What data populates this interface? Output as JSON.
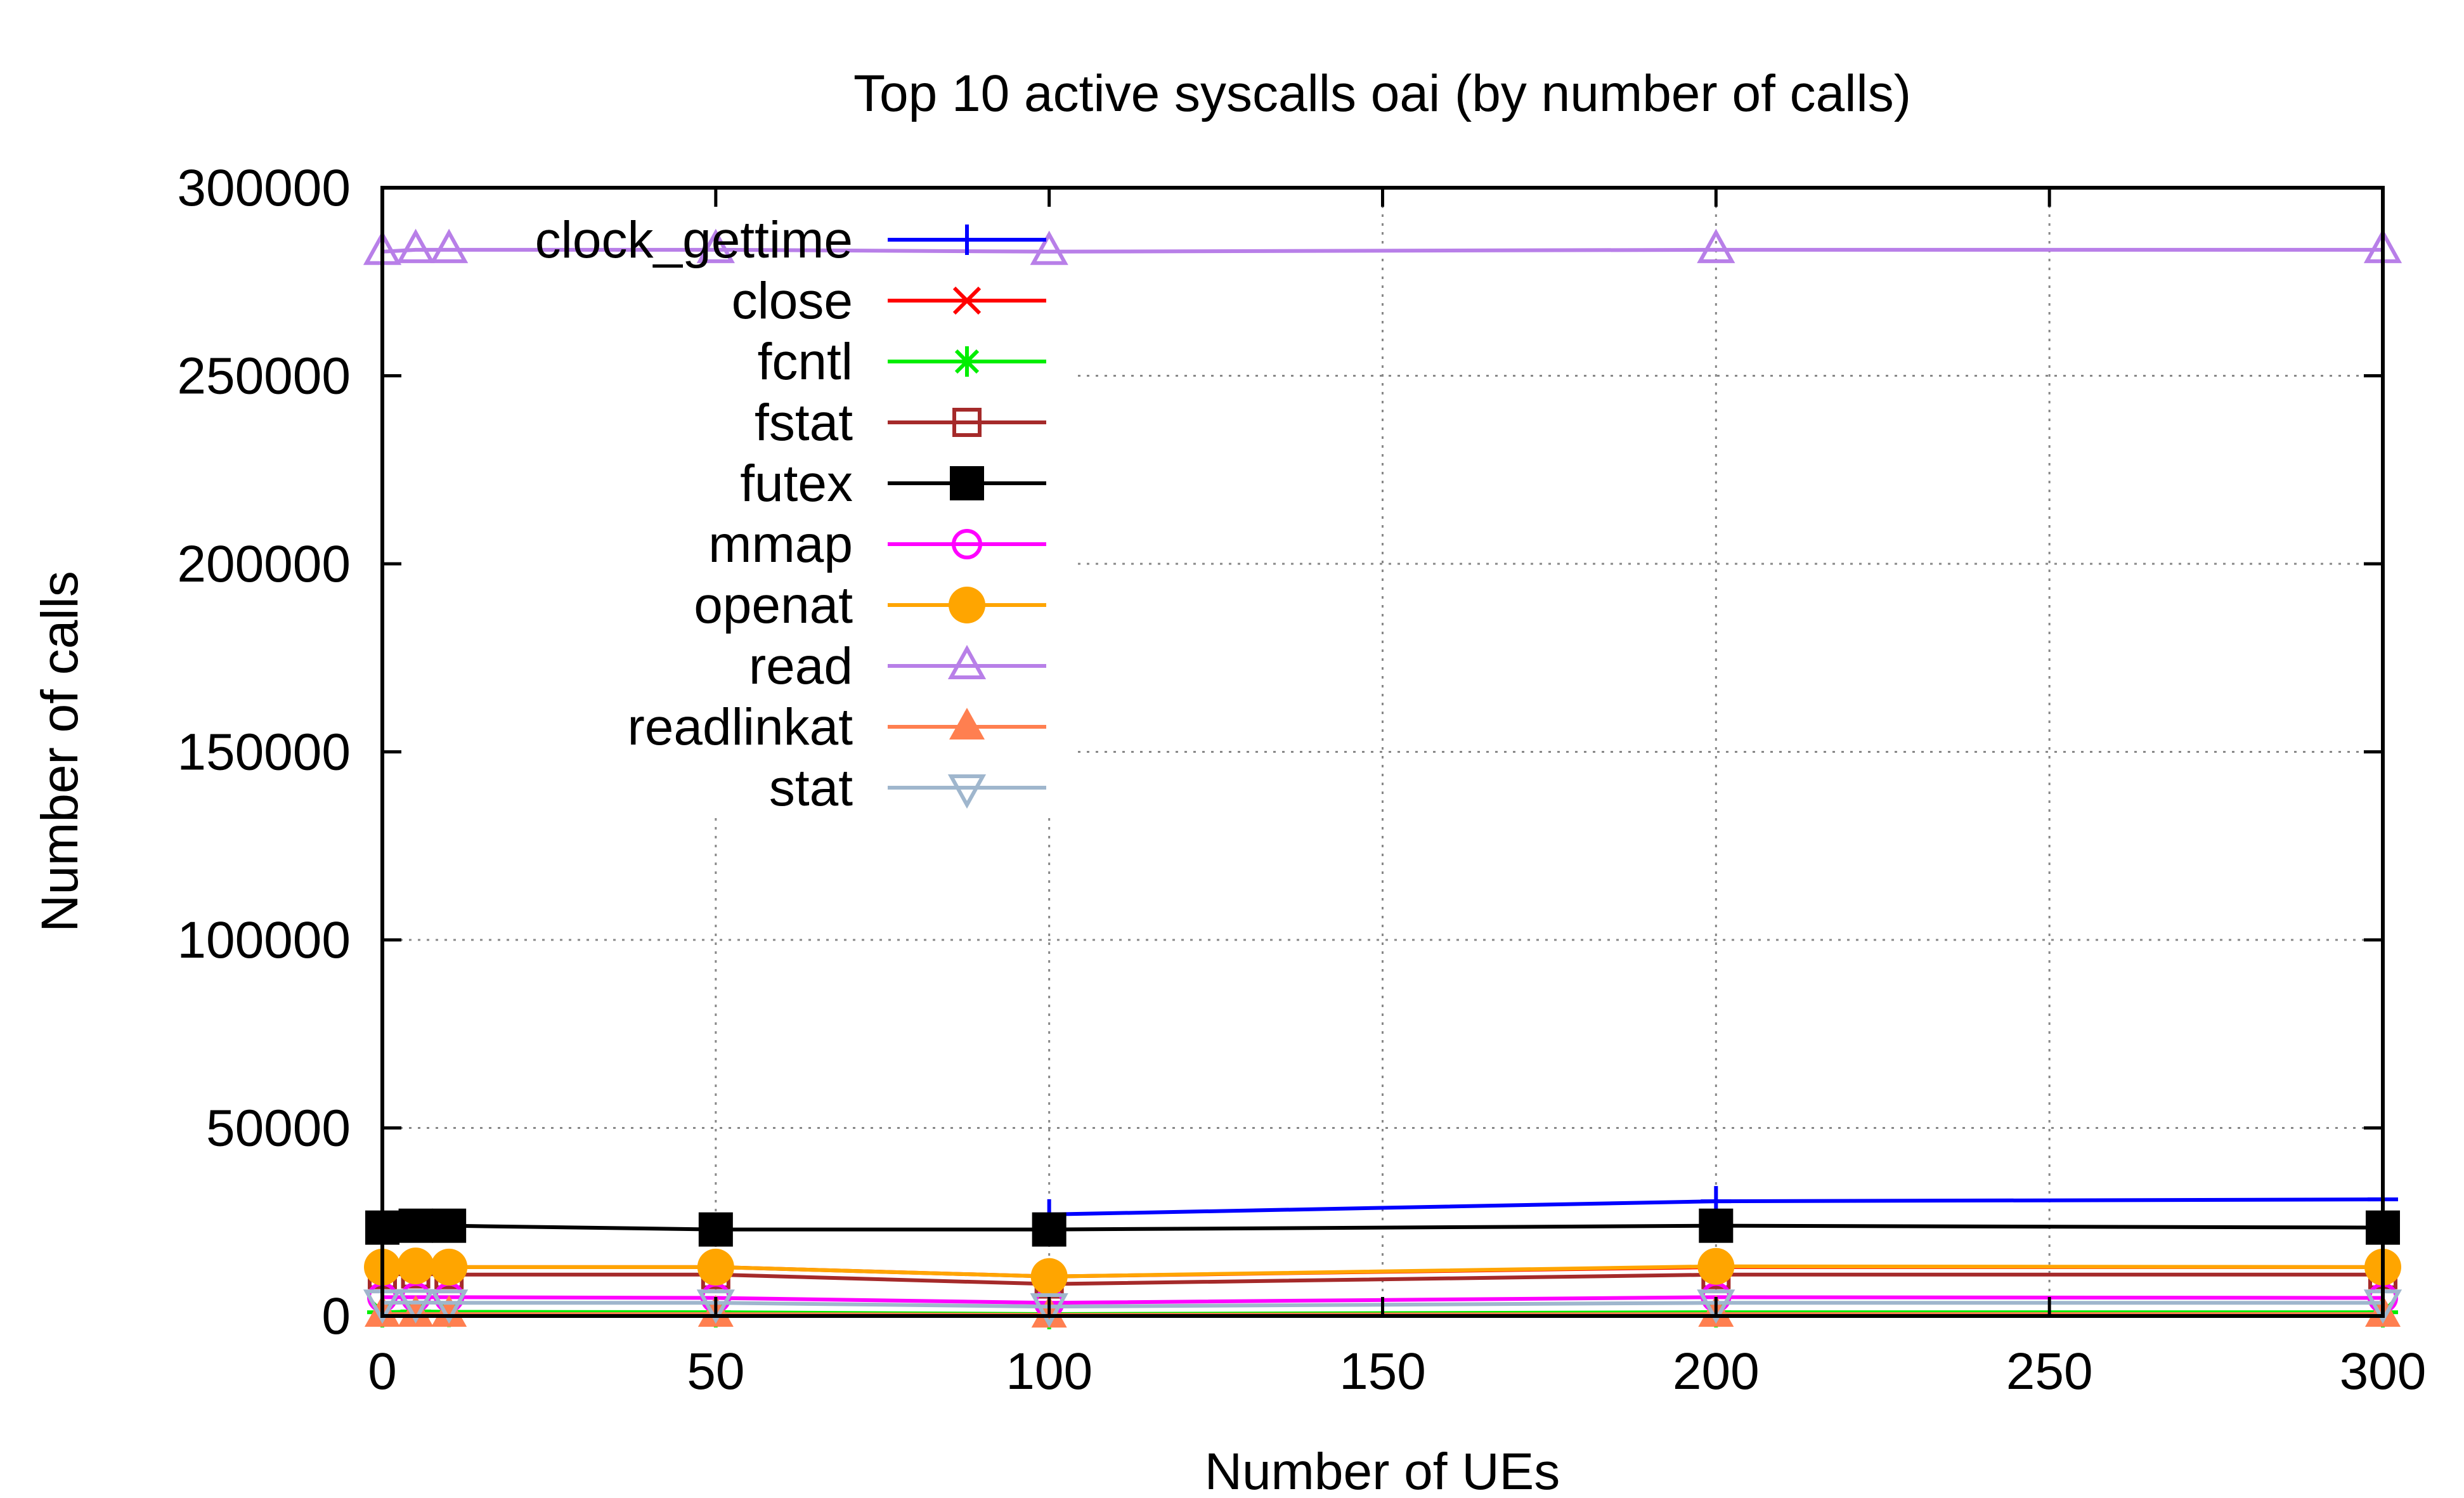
{
  "chart_data": {
    "type": "line",
    "title": "Top 10 active syscalls oai (by number of calls)",
    "xlabel": "Number of UEs",
    "ylabel": "Number of calls",
    "xlim": [
      0,
      300
    ],
    "ylim": [
      0,
      300000
    ],
    "xticks": [
      0,
      50,
      100,
      150,
      200,
      250,
      300
    ],
    "yticks": [
      0,
      50000,
      100000,
      150000,
      200000,
      250000,
      300000
    ],
    "grid": true,
    "legend_position": "top-left",
    "series": [
      {
        "name": "clock_gettime",
        "color": "#0000ff",
        "marker": "plus",
        "points": [
          [
            100,
            27000
          ],
          [
            200,
            30500
          ],
          [
            300,
            31000
          ]
        ]
      },
      {
        "name": "close",
        "color": "#ff0000",
        "marker": "cross",
        "points": [
          [
            0,
            13000
          ],
          [
            5,
            13200
          ],
          [
            10,
            13000
          ],
          [
            50,
            13000
          ],
          [
            100,
            10500
          ],
          [
            200,
            13000
          ],
          [
            300,
            13000
          ]
        ]
      },
      {
        "name": "fcntl",
        "color": "#00ee00",
        "marker": "star",
        "points": [
          [
            0,
            1000
          ],
          [
            5,
            1200
          ],
          [
            10,
            1100
          ],
          [
            50,
            1000
          ],
          [
            100,
            500
          ],
          [
            200,
            1000
          ],
          [
            300,
            1000
          ]
        ]
      },
      {
        "name": "fstat",
        "color": "#a52a2a",
        "marker": "square-open",
        "points": [
          [
            0,
            11000
          ],
          [
            5,
            11200
          ],
          [
            10,
            11000
          ],
          [
            50,
            11000
          ],
          [
            100,
            8500
          ],
          [
            200,
            11000
          ],
          [
            300,
            11000
          ]
        ]
      },
      {
        "name": "futex",
        "color": "#000000",
        "marker": "square-filled",
        "points": [
          [
            0,
            23500
          ],
          [
            5,
            24000
          ],
          [
            10,
            24000
          ],
          [
            50,
            23000
          ],
          [
            100,
            23000
          ],
          [
            200,
            24000
          ],
          [
            300,
            23500
          ]
        ]
      },
      {
        "name": "mmap",
        "color": "#ff00ff",
        "marker": "circle-open",
        "points": [
          [
            0,
            5000
          ],
          [
            5,
            5000
          ],
          [
            10,
            5000
          ],
          [
            50,
            4800
          ],
          [
            100,
            3500
          ],
          [
            200,
            5000
          ],
          [
            300,
            4800
          ]
        ]
      },
      {
        "name": "openat",
        "color": "#ffa500",
        "marker": "circle-filled",
        "points": [
          [
            0,
            13000
          ],
          [
            5,
            13300
          ],
          [
            10,
            13000
          ],
          [
            50,
            13000
          ],
          [
            100,
            10500
          ],
          [
            200,
            13200
          ],
          [
            300,
            13000
          ]
        ]
      },
      {
        "name": "read",
        "color": "#b87fe8",
        "marker": "triangle-open",
        "points": [
          [
            0,
            283000
          ],
          [
            5,
            283500
          ],
          [
            10,
            283500
          ],
          [
            50,
            283500
          ],
          [
            100,
            283000
          ],
          [
            200,
            283500
          ],
          [
            300,
            283500
          ]
        ]
      },
      {
        "name": "readlinkat",
        "color": "#ff7f50",
        "marker": "triangle-filled",
        "points": [
          [
            0,
            500
          ],
          [
            5,
            500
          ],
          [
            10,
            500
          ],
          [
            50,
            500
          ],
          [
            100,
            300
          ],
          [
            200,
            500
          ],
          [
            300,
            500
          ]
        ]
      },
      {
        "name": "stat",
        "color": "#9fb6cd",
        "marker": "triangle-down-open",
        "points": [
          [
            0,
            3500
          ],
          [
            5,
            3600
          ],
          [
            10,
            3500
          ],
          [
            50,
            3500
          ],
          [
            100,
            2500
          ],
          [
            200,
            3500
          ],
          [
            300,
            3500
          ]
        ]
      }
    ]
  }
}
